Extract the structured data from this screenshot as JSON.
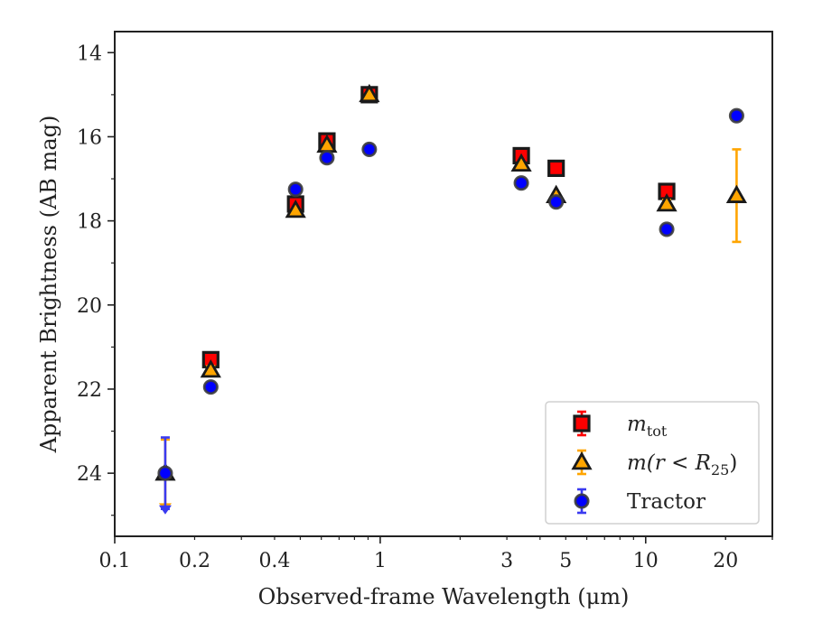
{
  "chart_data": {
    "type": "scatter",
    "xlabel": "Observed-frame Wavelength (μm)",
    "ylabel": "Apparent Brightness (AB mag)",
    "x_scale": "log",
    "xlim": [
      0.1,
      30
    ],
    "ylim": [
      25.5,
      13.5
    ],
    "y_inverted": true,
    "x_ticks": [
      {
        "value": 0.1,
        "label": "0.1"
      },
      {
        "value": 0.2,
        "label": "0.2"
      },
      {
        "value": 0.4,
        "label": "0.4"
      },
      {
        "value": 1,
        "label": "1"
      },
      {
        "value": 3,
        "label": "3"
      },
      {
        "value": 5,
        "label": "5"
      },
      {
        "value": 10,
        "label": "10"
      },
      {
        "value": 20,
        "label": "20"
      }
    ],
    "y_ticks": [
      14,
      16,
      18,
      20,
      22,
      24
    ],
    "grid": false,
    "legend_position": "bottom-right",
    "series": [
      {
        "name": "m_tot",
        "legend": {
          "base": "m",
          "sub": "tot"
        },
        "marker": "square",
        "color": "#ff0000",
        "error_color": "#ff0000",
        "points": [
          {
            "x": 0.23,
            "y": 21.3,
            "err": 0.1
          },
          {
            "x": 0.48,
            "y": 17.6,
            "err": 0.1
          },
          {
            "x": 0.63,
            "y": 16.1,
            "err": 0.1
          },
          {
            "x": 0.91,
            "y": 15.0,
            "err": 0.05
          },
          {
            "x": 3.4,
            "y": 16.45,
            "err": 0.05
          },
          {
            "x": 4.6,
            "y": 16.75,
            "err": 0.05
          },
          {
            "x": 12.0,
            "y": 17.3,
            "err": 0.05
          }
        ]
      },
      {
        "name": "m(r < R25)",
        "legend": {
          "prefix": "m(r < R",
          "sub": "25",
          "suffix": ")"
        },
        "marker": "triangle",
        "color": "#ffa500",
        "error_color": "#ffa500",
        "points": [
          {
            "x": 0.155,
            "y": 24.0,
            "err": 0.8
          },
          {
            "x": 0.23,
            "y": 21.55,
            "err": 0.1
          },
          {
            "x": 0.48,
            "y": 17.75,
            "err": 0.05
          },
          {
            "x": 0.63,
            "y": 16.2,
            "err": 0.05
          },
          {
            "x": 0.91,
            "y": 15.0,
            "err": 0.05
          },
          {
            "x": 3.4,
            "y": 16.65,
            "err": 0.05
          },
          {
            "x": 4.6,
            "y": 17.4,
            "err": 0.05
          },
          {
            "x": 12.0,
            "y": 17.6,
            "err": 0.1
          },
          {
            "x": 22.0,
            "y": 17.4,
            "err": 1.1
          }
        ]
      },
      {
        "name": "Tractor",
        "legend": {
          "base": "Tractor"
        },
        "marker": "circle",
        "color": "#0000ff",
        "error_color": "#3a3af0",
        "points": [
          {
            "x": 0.155,
            "y": 24.0,
            "err": 0.85
          },
          {
            "x": 0.23,
            "y": 21.95,
            "err": 0.05
          },
          {
            "x": 0.48,
            "y": 17.25,
            "err": 0.05
          },
          {
            "x": 0.63,
            "y": 16.5,
            "err": 0.05
          },
          {
            "x": 0.91,
            "y": 16.3,
            "err": 0.05
          },
          {
            "x": 3.4,
            "y": 17.1,
            "err": 0.05
          },
          {
            "x": 4.6,
            "y": 17.55,
            "err": 0.05
          },
          {
            "x": 12.0,
            "y": 18.2,
            "err": 0.05
          },
          {
            "x": 22.0,
            "y": 15.5,
            "err": 0.05
          }
        ]
      }
    ]
  }
}
